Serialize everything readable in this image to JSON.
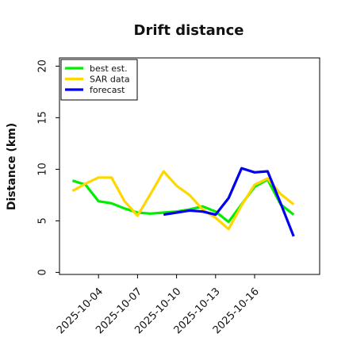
{
  "chart_data": {
    "type": "line",
    "title": "Drift distance",
    "xlabel": "",
    "ylabel": "Distance (km)",
    "ylim": [
      -0.2,
      20.8
    ],
    "yticks": [
      0,
      5,
      10,
      15,
      20
    ],
    "x_axis_type": "date",
    "xlim": [
      "2025-10-01",
      "2025-10-21"
    ],
    "xticks": [
      "2025-10-04",
      "2025-10-07",
      "2025-10-10",
      "2025-10-13",
      "2025-10-16"
    ],
    "grid": false,
    "legend_position": "top-left",
    "series": [
      {
        "name": "best est.",
        "color": "#00ee00",
        "x": [
          "2025-10-02",
          "2025-10-03",
          "2025-10-04",
          "2025-10-05",
          "2025-10-06",
          "2025-10-07",
          "2025-10-08",
          "2025-10-09",
          "2025-10-10",
          "2025-10-11",
          "2025-10-12",
          "2025-10-13",
          "2025-10-14",
          "2025-10-15",
          "2025-10-16",
          "2025-10-17",
          "2025-10-18",
          "2025-10-19"
        ],
        "values": [
          8.9,
          8.5,
          6.9,
          6.7,
          6.2,
          5.8,
          5.7,
          5.8,
          5.9,
          6.1,
          6.4,
          5.9,
          4.9,
          6.6,
          8.3,
          9.0,
          6.6,
          5.6
        ]
      },
      {
        "name": "SAR data",
        "color": "#ffd700",
        "x": [
          "2025-10-02",
          "2025-10-03",
          "2025-10-04",
          "2025-10-05",
          "2025-10-06",
          "2025-10-07",
          "2025-10-08",
          "2025-10-09",
          "2025-10-10",
          "2025-10-11",
          "2025-10-12",
          "2025-10-13",
          "2025-10-14",
          "2025-10-15",
          "2025-10-16",
          "2025-10-17",
          "2025-10-18",
          "2025-10-19"
        ],
        "values": [
          7.9,
          8.6,
          9.2,
          9.2,
          6.9,
          5.5,
          7.6,
          9.8,
          8.4,
          7.5,
          6.1,
          5.3,
          4.2,
          6.5,
          8.5,
          9.1,
          7.6,
          6.6
        ]
      },
      {
        "name": "forecast",
        "color": "#0000ee",
        "x": [
          "2025-10-09",
          "2025-10-10",
          "2025-10-11",
          "2025-10-12",
          "2025-10-13",
          "2025-10-14",
          "2025-10-15",
          "2025-10-16",
          "2025-10-17",
          "2025-10-18",
          "2025-10-19"
        ],
        "values": [
          5.6,
          5.8,
          6.0,
          5.9,
          5.6,
          7.2,
          10.1,
          9.7,
          9.8,
          6.7,
          3.5
        ]
      }
    ]
  }
}
